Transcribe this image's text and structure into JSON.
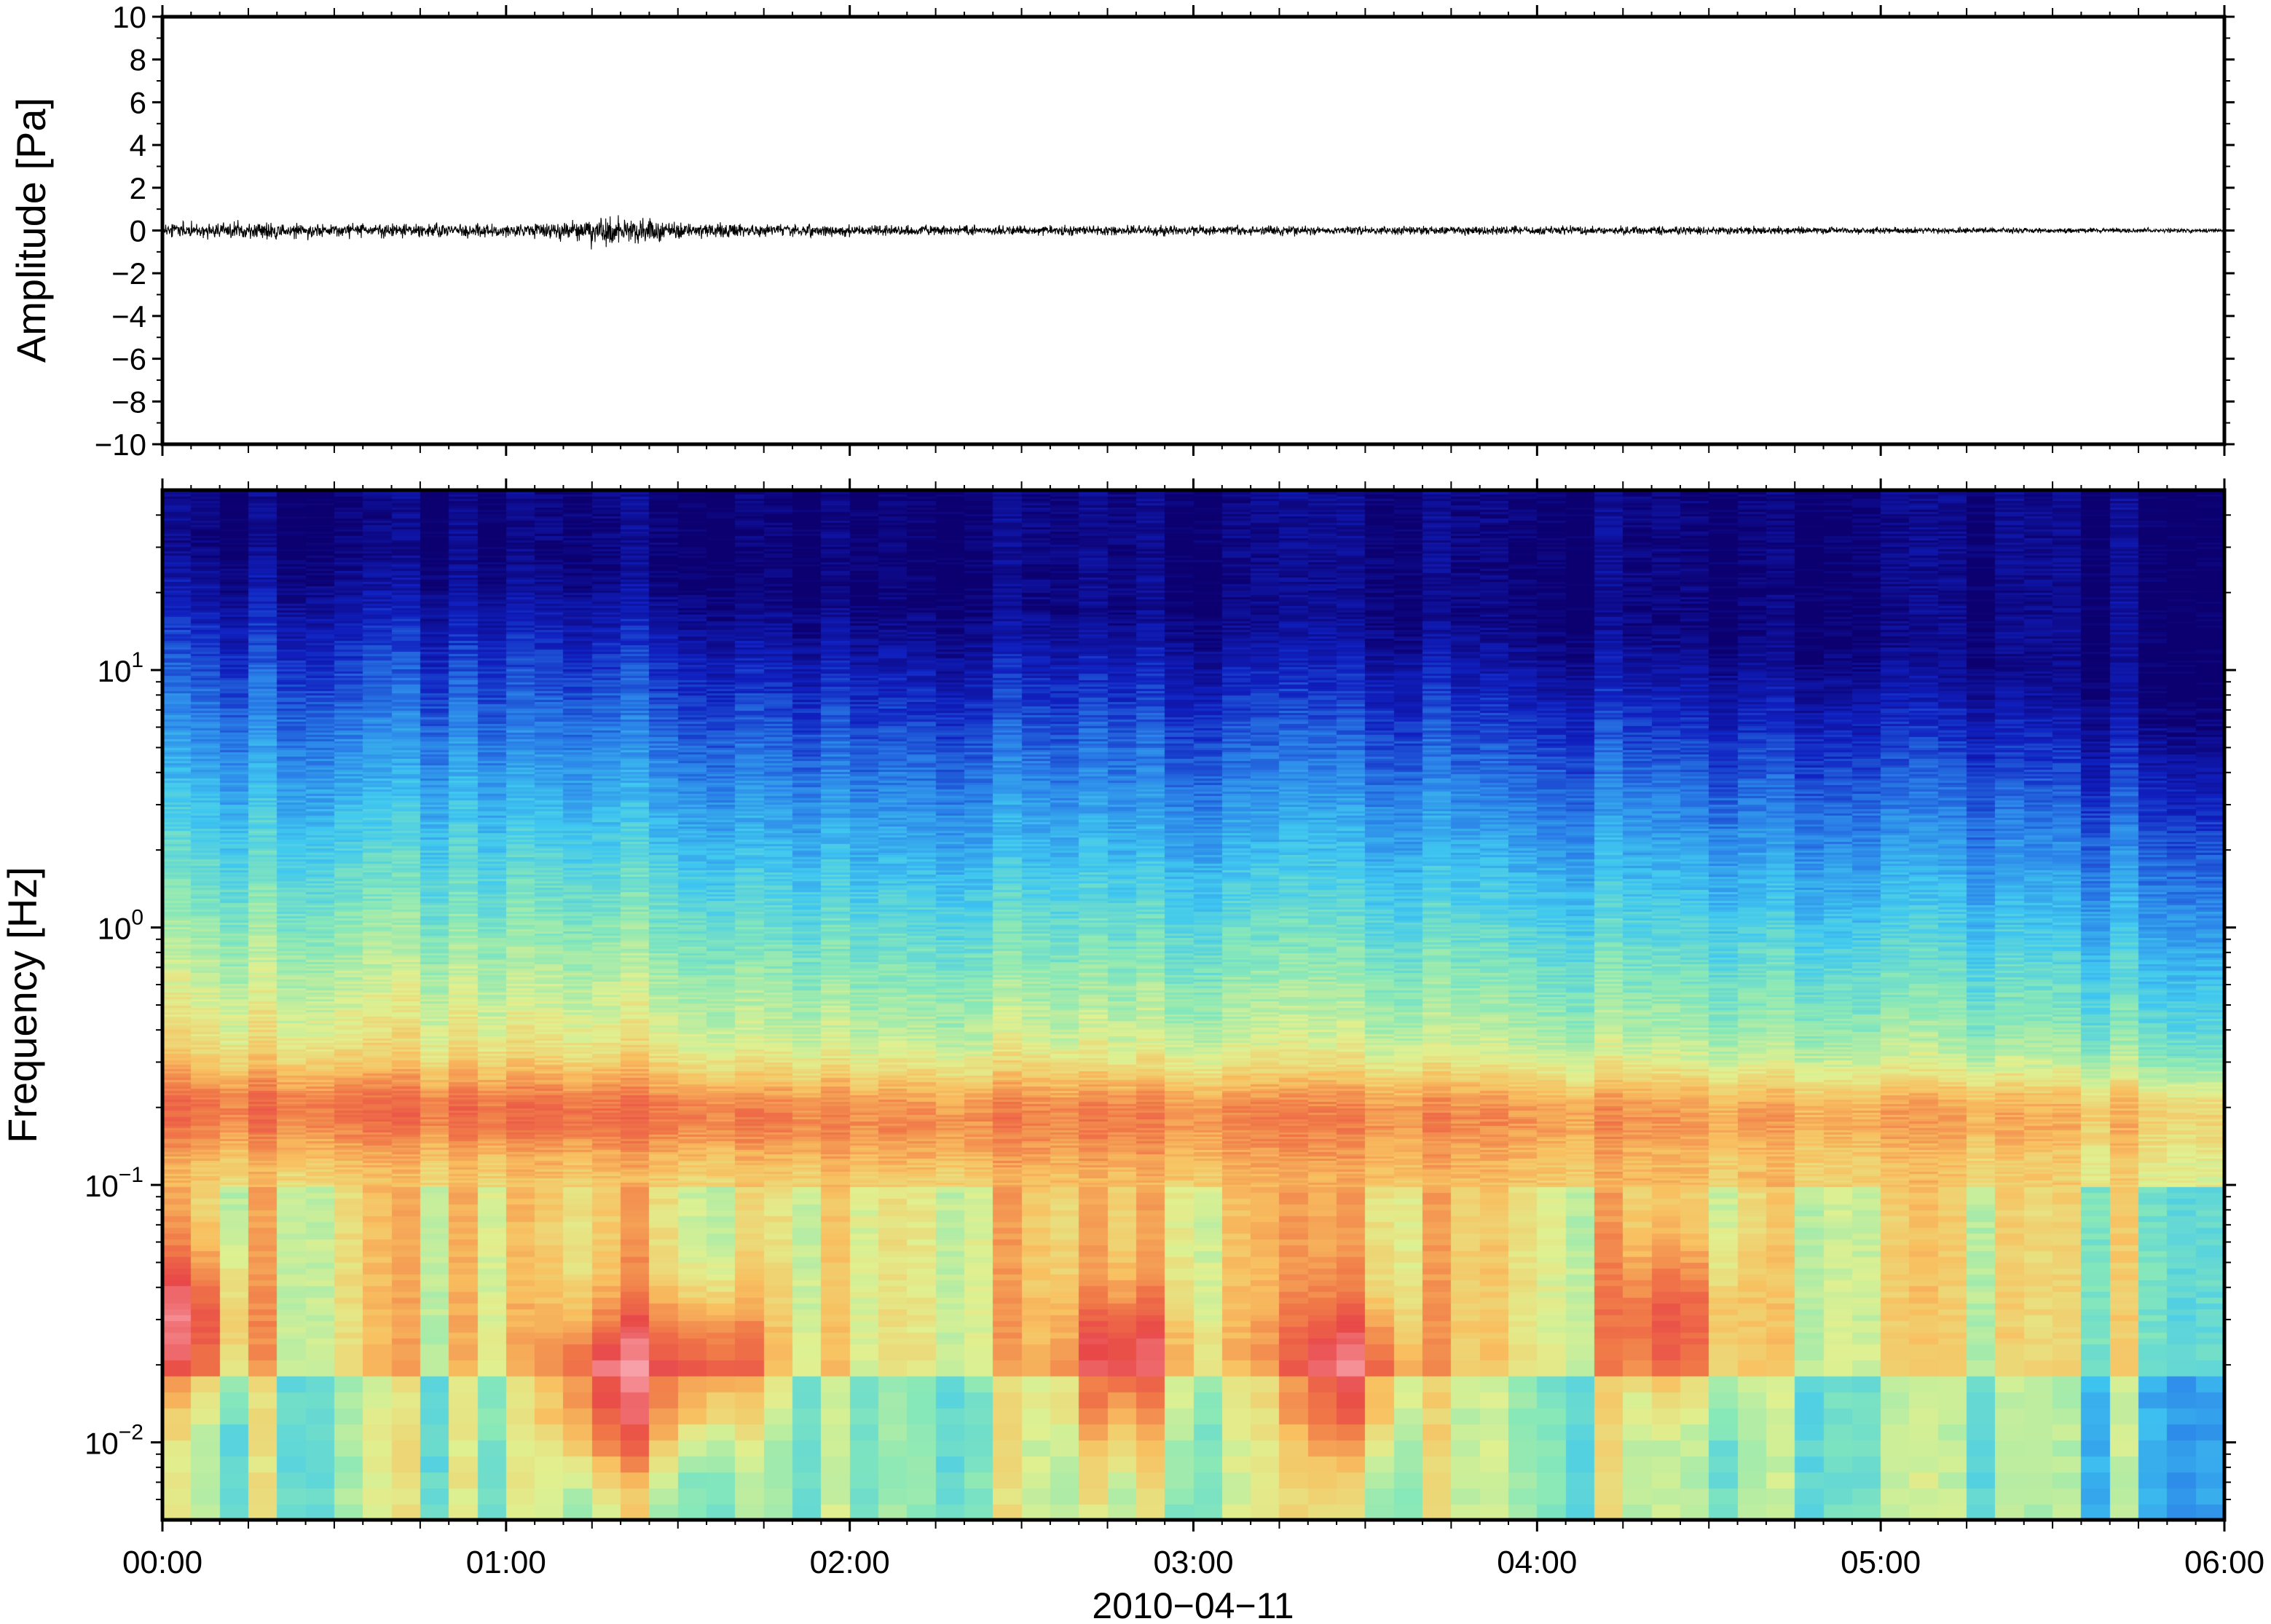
{
  "chart_data": [
    {
      "type": "line",
      "panel": "waveform",
      "ylabel": "Amplitude [Pa]",
      "ylim": [
        -10,
        10
      ],
      "yticks": [
        10,
        8,
        6,
        4,
        2,
        0,
        -2,
        -4,
        -6,
        -8,
        -10
      ],
      "ytick_labels": [
        "10",
        "8",
        "6",
        "4",
        "2",
        "0",
        "−2",
        "−4",
        "−6",
        "−8",
        "−10"
      ],
      "xlim": [
        "00:00",
        "06:00"
      ],
      "series": [
        {
          "color": "#000000",
          "envelope": {
            "t_hours": [
              0.0,
              0.25,
              0.5,
              0.75,
              1.0,
              1.1,
              1.2,
              1.27,
              1.35,
              1.45,
              1.6,
              1.8,
              2.0,
              2.5,
              3.0,
              3.5,
              4.0,
              4.5,
              5.0,
              5.5,
              6.0
            ],
            "amplitude_pa": [
              0.5,
              0.55,
              0.45,
              0.45,
              0.45,
              0.5,
              0.6,
              1.1,
              0.9,
              0.7,
              0.5,
              0.4,
              0.35,
              0.33,
              0.32,
              0.3,
              0.28,
              0.26,
              0.22,
              0.18,
              0.14
            ]
          }
        }
      ],
      "grid": false
    },
    {
      "type": "heatmap",
      "panel": "spectrogram",
      "ylabel": "Frequency [Hz]",
      "yscale": "log",
      "ylim_hz": [
        0.005,
        50
      ],
      "yticks_hz": [
        10,
        1,
        0.1,
        0.01
      ],
      "ytick_labels": [
        {
          "base": "10",
          "exp": "1"
        },
        {
          "base": "10",
          "exp": "0"
        },
        {
          "base": "10",
          "exp": "−1"
        },
        {
          "base": "10",
          "exp": "−2"
        }
      ],
      "xlabel": "2010−04−11",
      "xtick_labels": [
        "00:00",
        "01:00",
        "02:00",
        "03:00",
        "04:00",
        "05:00",
        "06:00"
      ],
      "xlim_hours": [
        0,
        6
      ],
      "colormap": [
        "#0c0070",
        "#1020c0",
        "#2a80e8",
        "#40c8f0",
        "#88e8b8",
        "#e0f090",
        "#f8c060",
        "#f07848",
        "#e84848",
        "#f8a0a8"
      ],
      "time_bins": 72,
      "upper_cutoff_hz": {
        "t_hours": [
          0.0,
          1.0,
          1.5,
          2.0,
          3.0,
          4.0,
          5.0,
          5.5,
          6.0
        ],
        "hz": [
          20,
          17,
          15,
          12,
          11,
          10,
          8,
          6,
          5
        ]
      },
      "microbarom_band_hz": [
        0.15,
        0.25
      ],
      "energy_events": [
        {
          "t_hours": 0.05,
          "hz": 0.03,
          "level": 0.8
        },
        {
          "t_hours": 1.3,
          "hz": 0.016,
          "level": 1.0
        },
        {
          "t_hours": 1.6,
          "hz": 0.02,
          "level": 0.85
        },
        {
          "t_hours": 2.8,
          "hz": 0.02,
          "level": 0.8
        },
        {
          "t_hours": 3.45,
          "hz": 0.018,
          "level": 0.85
        },
        {
          "t_hours": 4.4,
          "hz": 0.03,
          "level": 0.65
        }
      ],
      "grid": false
    }
  ]
}
